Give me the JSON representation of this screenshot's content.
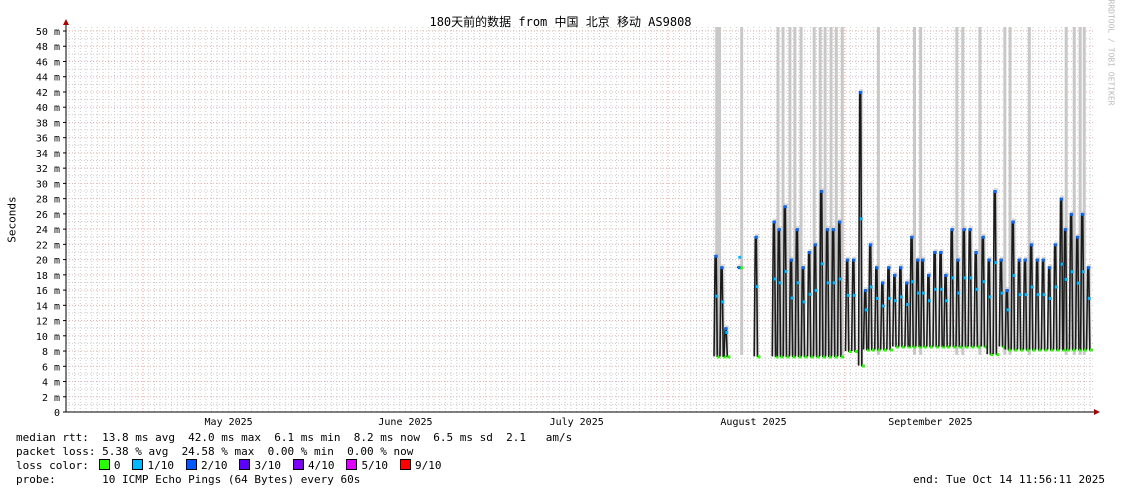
{
  "chart_data": {
    "type": "line",
    "title": "180天前的数据 from 中国 北京 移动 AS9808",
    "ylabel": "Seconds",
    "ylim": [
      0,
      50
    ],
    "yticks": [
      "0",
      "2 m",
      "4 m",
      "6 m",
      "8 m",
      "10 m",
      "12 m",
      "14 m",
      "16 m",
      "18 m",
      "20 m",
      "22 m",
      "24 m",
      "26 m",
      "28 m",
      "30 m",
      "32 m",
      "34 m",
      "36 m",
      "38 m",
      "40 m",
      "42 m",
      "44 m",
      "46 m",
      "48 m",
      "50 m"
    ],
    "xlim": [
      "2025-04-17T11:56",
      "2025-10-14T11:56"
    ],
    "xticks": [
      {
        "label": "May 2025",
        "date": "2025-05-16"
      },
      {
        "label": "June 2025",
        "date": "2025-06-16"
      },
      {
        "label": "July 2025",
        "date": "2025-07-16"
      },
      {
        "label": "August 2025",
        "date": "2025-08-16"
      },
      {
        "label": "September 2025",
        "date": "2025-09-16"
      }
    ],
    "major_grid": [
      "2025-05-01",
      "2025-08-01",
      "2025-09-01"
    ],
    "grid": true,
    "series_median_ms": [
      [
        "2025-08-09T11",
        20.5,
        7.3
      ],
      [
        "2025-08-10T12",
        19,
        7.3
      ],
      [
        "2025-08-11T05",
        11,
        7.3
      ],
      [
        "2025-08-13T12",
        19,
        19
      ],
      [
        "2025-08-16T12",
        23,
        7.3
      ],
      [
        "2025-08-19T16",
        25,
        7.3
      ],
      [
        "2025-08-20T13",
        24,
        7.3
      ],
      [
        "2025-08-21T14",
        27,
        7.3
      ],
      [
        "2025-08-22T16",
        20,
        7.3
      ],
      [
        "2025-08-23T17",
        24,
        7.3
      ],
      [
        "2025-08-24T18",
        19,
        7.3
      ],
      [
        "2025-08-25T20",
        21,
        7.3
      ],
      [
        "2025-08-26T21",
        22,
        7.3
      ],
      [
        "2025-08-27T23",
        29,
        7.3
      ],
      [
        "2025-08-29T00",
        24,
        7.3
      ],
      [
        "2025-08-30T01",
        24,
        7.3
      ],
      [
        "2025-08-31T03",
        25,
        7.3
      ],
      [
        "2025-09-01T12",
        20,
        8
      ],
      [
        "2025-09-02T14",
        20,
        8
      ],
      [
        "2025-09-03T19",
        42,
        6.1
      ],
      [
        "2025-09-04T16",
        16,
        8.2
      ],
      [
        "2025-09-05T13",
        22,
        8.2
      ],
      [
        "2025-09-06T15",
        19,
        8.2
      ],
      [
        "2025-09-07T16",
        17,
        8.2
      ],
      [
        "2025-09-08T18",
        19,
        8.2
      ],
      [
        "2025-09-09T19",
        18,
        8.6
      ],
      [
        "2025-09-10T20",
        19,
        8.6
      ],
      [
        "2025-09-11T22",
        17,
        8.6
      ],
      [
        "2025-09-12T19",
        23,
        8.6
      ],
      [
        "2025-09-13T20",
        20,
        8.6
      ],
      [
        "2025-09-14T17",
        20,
        8.6
      ],
      [
        "2025-09-15T18",
        18,
        8.6
      ],
      [
        "2025-09-16T20",
        21,
        8.6
      ],
      [
        "2025-09-17T21",
        21,
        8.6
      ],
      [
        "2025-09-18T18",
        18,
        8.6
      ],
      [
        "2025-09-19T20",
        24,
        8.6
      ],
      [
        "2025-09-20T21",
        20,
        8.6
      ],
      [
        "2025-09-21T23",
        24,
        8.6
      ],
      [
        "2025-09-23T00",
        24,
        8.6
      ],
      [
        "2025-09-24T01",
        21,
        8.6
      ],
      [
        "2025-09-25T07",
        23,
        8.6
      ],
      [
        "2025-09-26T08",
        20,
        7.6
      ],
      [
        "2025-09-27T09",
        29,
        7.6
      ],
      [
        "2025-09-28T11",
        20,
        8.6
      ],
      [
        "2025-09-29T12",
        16,
        8.2
      ],
      [
        "2025-09-30T13",
        25,
        8.2
      ],
      [
        "2025-10-01T15",
        20,
        8.2
      ],
      [
        "2025-10-02T16",
        20,
        8.2
      ],
      [
        "2025-10-03T18",
        22,
        8.2
      ],
      [
        "2025-10-04T19",
        20,
        8.2
      ],
      [
        "2025-10-05T20",
        20,
        8.2
      ],
      [
        "2025-10-06T22",
        19,
        8.2
      ],
      [
        "2025-10-07T23",
        22,
        8.2
      ],
      [
        "2025-10-09T00",
        28,
        8.2
      ],
      [
        "2025-10-09T17",
        24,
        8.2
      ],
      [
        "2025-10-10T18",
        26,
        8.2
      ],
      [
        "2025-10-11T20",
        23,
        8.2
      ],
      [
        "2025-10-12T17",
        26,
        8.2
      ],
      [
        "2025-10-13T18",
        19,
        8.2
      ]
    ],
    "full_loss_periods": [
      "2025-08-09T11",
      "2025-08-09T23",
      "2025-08-13T20",
      "2025-08-20T05",
      "2025-08-21T02",
      "2025-08-22T07",
      "2025-08-23T04",
      "2025-08-24T06",
      "2025-08-26T13",
      "2025-08-27T14",
      "2025-08-28T11",
      "2025-08-29T12",
      "2025-08-30T10",
      "2025-08-31T11",
      "2025-09-06T19",
      "2025-09-13T03",
      "2025-09-14T05",
      "2025-09-20T13",
      "2025-09-21T14",
      "2025-09-24T14",
      "2025-09-28T23",
      "2025-09-29T21",
      "2025-10-03T06",
      "2025-10-09T17",
      "2025-10-11T03",
      "2025-10-12T04",
      "2025-10-12T21"
    ],
    "colors": {
      "line": "#000000",
      "smoke": "#c8c8c8",
      "grid_minor": "#cccccc",
      "grid_major": "#ff9999"
    }
  },
  "legend": {
    "rtt_line": "median rtt:  13.8 ms avg  42.0 ms max  6.1 ms min  8.2 ms now  6.5 ms sd  2.1   am/s",
    "loss_line": "packet loss: 5.38 % avg  24.58 % max  0.00 % min  0.00 % now",
    "loss_label": "loss color:",
    "loss_colors": [
      {
        "label": "0",
        "color": "#26ff00"
      },
      {
        "label": "1/10",
        "color": "#00b8ff"
      },
      {
        "label": "2/10",
        "color": "#0059ff"
      },
      {
        "label": "3/10",
        "color": "#5e00ff"
      },
      {
        "label": "4/10",
        "color": "#7e00ff"
      },
      {
        "label": "5/10",
        "color": "#dd00ff"
      },
      {
        "label": "9/10",
        "color": "#ff0000"
      }
    ],
    "probe": "probe:       10 ICMP Echo Pings (64 Bytes) every 60s",
    "end": "end: Tue Oct 14 11:56:11 2025"
  },
  "watermark": "RRDTOOL / TOBI OETIKER"
}
